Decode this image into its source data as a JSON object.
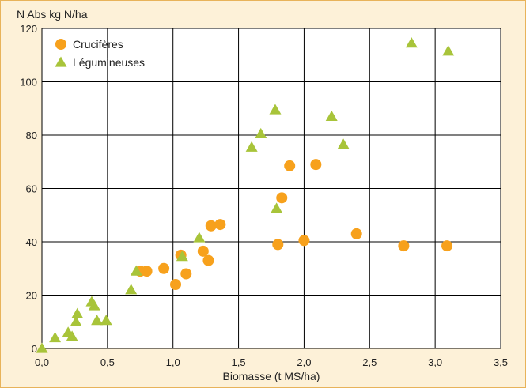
{
  "chart_data": {
    "type": "scatter",
    "title": "",
    "ylabel": "N Abs kg N/ha",
    "xlabel": "Biomasse (t MS/ha)",
    "xlim": [
      0,
      3.5
    ],
    "ylim": [
      0,
      120
    ],
    "xticks": [
      0,
      0.5,
      1,
      1.5,
      2,
      2.5,
      3,
      3.5
    ],
    "xtick_labels": [
      "0,0",
      "0,5",
      "1,0",
      "1,5",
      "2,0",
      "2,5",
      "3,0",
      "3,5"
    ],
    "yticks": [
      0,
      20,
      40,
      60,
      80,
      100,
      120
    ],
    "ytick_labels": [
      "0",
      "20",
      "40",
      "60",
      "80",
      "100",
      "120"
    ],
    "grid": true,
    "legend_position": "top-left",
    "series": [
      {
        "name": "Crucifères",
        "marker": "circle",
        "color": "#f7a11c",
        "points": [
          [
            0.75,
            29
          ],
          [
            0.8,
            29
          ],
          [
            0.93,
            30
          ],
          [
            1.02,
            24
          ],
          [
            1.06,
            35
          ],
          [
            1.1,
            28
          ],
          [
            1.23,
            36.5
          ],
          [
            1.27,
            33
          ],
          [
            1.29,
            46
          ],
          [
            1.36,
            46.5
          ],
          [
            1.8,
            39
          ],
          [
            1.83,
            56.5
          ],
          [
            1.89,
            68.5
          ],
          [
            2.0,
            40.5
          ],
          [
            2.09,
            69
          ],
          [
            2.4,
            43
          ],
          [
            2.76,
            38.5
          ],
          [
            3.09,
            38.5
          ]
        ]
      },
      {
        "name": "Légumineuses",
        "marker": "triangle",
        "color": "#a8c43a",
        "points": [
          [
            0.0,
            0
          ],
          [
            0.1,
            4
          ],
          [
            0.2,
            6
          ],
          [
            0.23,
            4.5
          ],
          [
            0.26,
            10
          ],
          [
            0.27,
            13
          ],
          [
            0.38,
            17.5
          ],
          [
            0.4,
            16
          ],
          [
            0.42,
            10.5
          ],
          [
            0.49,
            10.5
          ],
          [
            0.68,
            22
          ],
          [
            0.72,
            29
          ],
          [
            1.07,
            34.5
          ],
          [
            1.2,
            41.5
          ],
          [
            1.6,
            75.5
          ],
          [
            1.67,
            80.5
          ],
          [
            1.78,
            89.5
          ],
          [
            1.79,
            52.5
          ],
          [
            2.21,
            87
          ],
          [
            2.3,
            76.5
          ],
          [
            2.82,
            114.5
          ],
          [
            3.1,
            111.5
          ]
        ]
      }
    ]
  }
}
